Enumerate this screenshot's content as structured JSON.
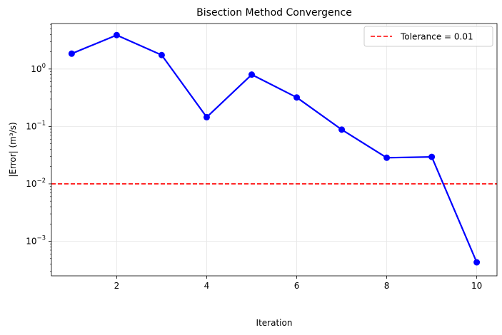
{
  "chart_data": {
    "type": "line",
    "title": "Bisection Method Convergence",
    "xlabel": "Iteration",
    "ylabel": "|Error| (m³/s)",
    "x_scale": "linear",
    "y_scale": "log",
    "xlim": [
      0.55,
      10.45
    ],
    "ylim": [
      0.00025,
      6.2
    ],
    "x_ticks": [
      2,
      4,
      6,
      8,
      10
    ],
    "y_ticks": [
      {
        "value": 0.001,
        "mantissa": "10",
        "exp": "−3"
      },
      {
        "value": 0.01,
        "mantissa": "10",
        "exp": "−2"
      },
      {
        "value": 0.1,
        "mantissa": "10",
        "exp": "−1"
      },
      {
        "value": 1,
        "mantissa": "10",
        "exp": "0"
      }
    ],
    "grid": true,
    "legend_position": "top-right",
    "series": [
      {
        "color": "#0000ff",
        "marker": "circle",
        "x": [
          1,
          2,
          3,
          4,
          5,
          6,
          7,
          8,
          9,
          10
        ],
        "y": [
          1.85,
          3.9,
          1.75,
          0.145,
          0.8,
          0.32,
          0.088,
          0.0285,
          0.0295,
          0.00043
        ]
      }
    ],
    "reference_lines": [
      {
        "type": "horizontal",
        "y": 0.01,
        "name": "Tolerance = 0.01",
        "color": "#ff0000",
        "style": "dashed"
      }
    ]
  }
}
